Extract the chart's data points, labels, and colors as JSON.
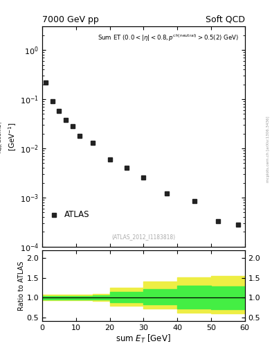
{
  "title_left": "7000 GeV pp",
  "title_right": "Soft QCD",
  "ref_label": "(ATLAS_2012_I1183818)",
  "legend_label": "ATLAS",
  "xlim": [
    0,
    60
  ],
  "ylim_main": [
    0.0001,
    3
  ],
  "ylim_ratio": [
    0.4,
    2.2
  ],
  "ratio_yticks": [
    0.5,
    1.0,
    1.5,
    2.0
  ],
  "data_x": [
    1,
    3,
    5,
    7,
    9,
    11,
    15,
    20,
    25,
    30,
    37,
    45,
    52,
    58
  ],
  "data_y": [
    0.22,
    0.092,
    0.058,
    0.038,
    0.028,
    0.018,
    0.013,
    0.006,
    0.004,
    0.0026,
    0.0012,
    0.00085,
    0.00033,
    0.00028
  ],
  "ratio_yellow_x": [
    0,
    2,
    5,
    10,
    15,
    20,
    30,
    40,
    50,
    60
  ],
  "ratio_yellow_lo": [
    0.93,
    0.93,
    0.93,
    0.93,
    0.92,
    0.8,
    0.72,
    0.62,
    0.6,
    0.6
  ],
  "ratio_yellow_hi": [
    1.07,
    1.07,
    1.07,
    1.07,
    1.1,
    1.25,
    1.4,
    1.52,
    1.55,
    1.55
  ],
  "ratio_green_x": [
    0,
    2,
    5,
    10,
    15,
    20,
    30,
    40,
    50,
    60
  ],
  "ratio_green_lo": [
    0.96,
    0.96,
    0.96,
    0.96,
    0.95,
    0.88,
    0.82,
    0.72,
    0.7,
    0.7
  ],
  "ratio_green_hi": [
    1.04,
    1.04,
    1.04,
    1.04,
    1.06,
    1.14,
    1.22,
    1.3,
    1.28,
    1.28
  ],
  "marker_color": "#222222",
  "marker_size": 5,
  "yellow_color": "#eeee44",
  "green_color": "#44ee44",
  "bg_color": "#ffffff",
  "watermark": "mcplots.cern.ch [arXiv:1306.3436]"
}
